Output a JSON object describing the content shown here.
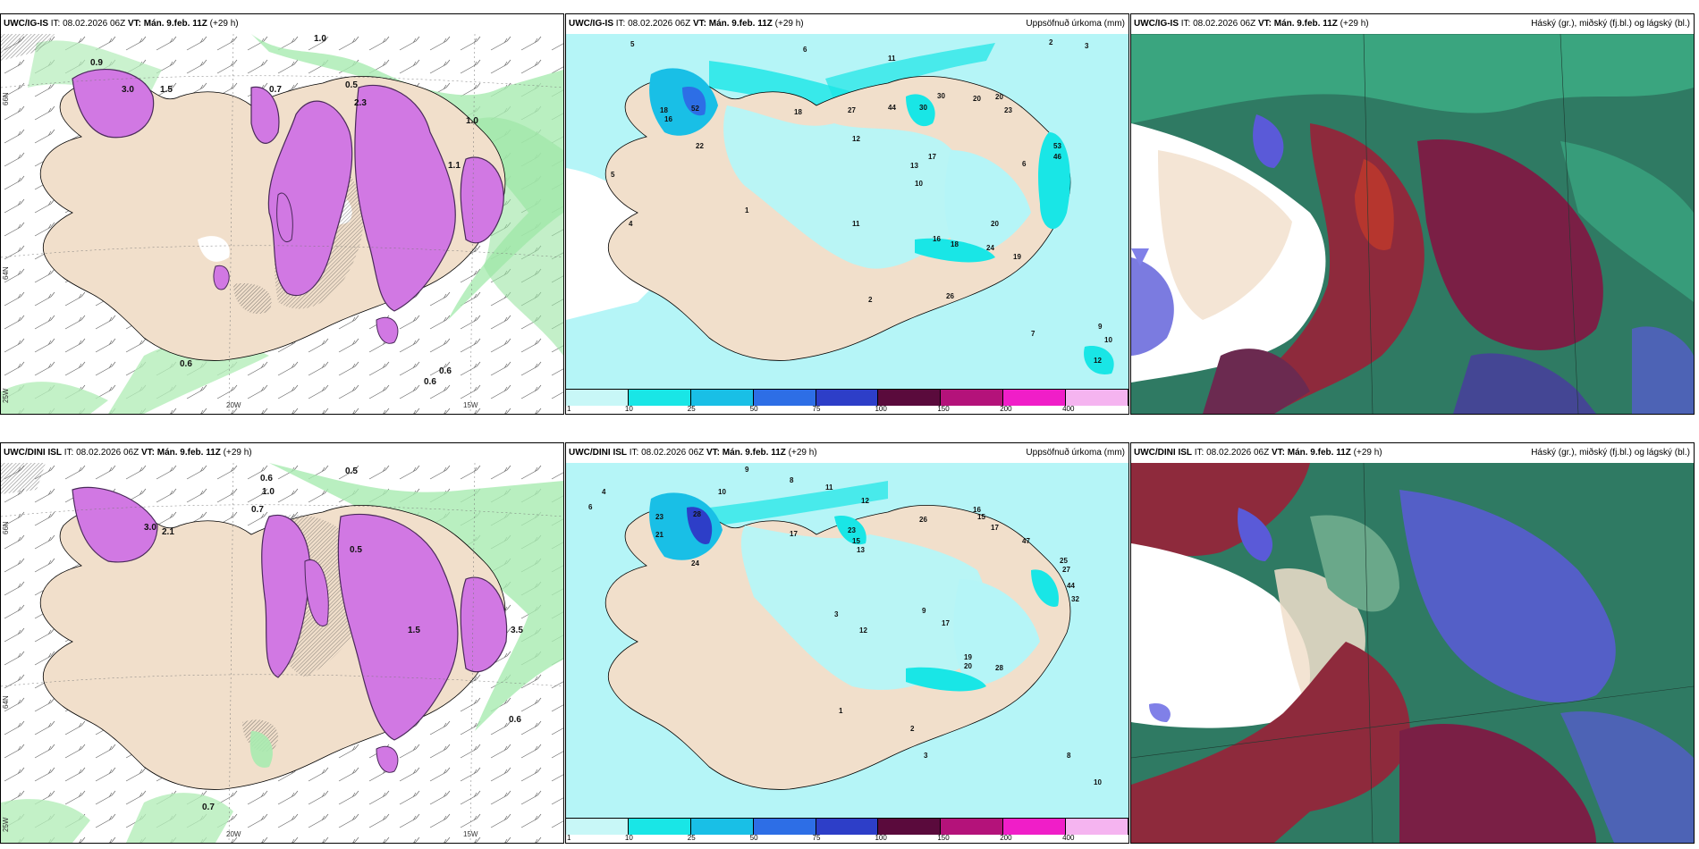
{
  "panels": [
    {
      "model": "UWC/IG-IS",
      "it_label": "IT:",
      "it": "08.02.2026 06Z",
      "vt_label": "VT:",
      "vt": "Mán. 9.feb. 11Z",
      "lead": "(+29 h)",
      "right": ""
    },
    {
      "model": "UWC/IG-IS",
      "it_label": "IT:",
      "it": "08.02.2026 06Z",
      "vt_label": "VT:",
      "vt": "Mán. 9.feb. 11Z",
      "lead": "(+29 h)",
      "right": "Uppsöfnuð úrkoma (mm)"
    },
    {
      "model": "UWC/IG-IS",
      "it_label": "IT:",
      "it": "08.02.2026 06Z",
      "vt_label": "VT:",
      "vt": "Mán. 9.feb. 11Z",
      "lead": "(+29 h)",
      "right": "Háský (gr.), miðský (fj.bl.) og lágský (bl.)"
    },
    {
      "model": "UWC/DINI ISL",
      "it_label": "IT:",
      "it": "08.02.2026 06Z",
      "vt_label": "VT:",
      "vt": "Mán. 9.feb. 11Z",
      "lead": "(+29 h)",
      "right": ""
    },
    {
      "model": "UWC/DINI ISL",
      "it_label": "IT:",
      "it": "08.02.2026 06Z",
      "vt_label": "VT:",
      "vt": "Mán. 9.feb. 11Z",
      "lead": "(+29 h)",
      "right": "Uppsöfnuð úrkoma (mm)"
    },
    {
      "model": "UWC/DINI ISL",
      "it_label": "IT:",
      "it": "08.02.2026 06Z",
      "vt_label": "VT:",
      "vt": "Mán. 9.feb. 11Z",
      "lead": "(+29 h)",
      "right": "Háský (gr.), miðský (fj.bl.) og lágský (bl.)"
    }
  ],
  "axes": {
    "lat66": "66N",
    "lat64": "64N",
    "lon20": "20W",
    "lon15": "15W",
    "lon25": "25W"
  },
  "snow_labels_top": [
    "0.9",
    "1.0",
    "1.5",
    "2.3",
    "0.6",
    "0.7",
    "0.5",
    "3.0",
    "1.1",
    "0.6",
    "0.6",
    "1.0"
  ],
  "snow_labels_bottom": [
    "1.0",
    "0.5",
    "3.0",
    "2.1",
    "1.5",
    "0.6",
    "0.7",
    "0.5",
    "3.5",
    "0.6",
    "0.7"
  ],
  "precip_labels_top": [
    "5",
    "6",
    "11",
    "2",
    "3",
    "30",
    "52",
    "18",
    "20",
    "27",
    "22",
    "44",
    "30",
    "20",
    "23",
    "46",
    "53",
    "18",
    "16",
    "12",
    "13",
    "17",
    "10",
    "4",
    "5",
    "1",
    "2",
    "11",
    "16",
    "18",
    "24",
    "26",
    "19",
    "20",
    "9",
    "10",
    "12",
    "6",
    "7"
  ],
  "precip_labels_bottom": [
    "9",
    "8",
    "10",
    "11",
    "12",
    "4",
    "6",
    "23",
    "28",
    "21",
    "24",
    "17",
    "13",
    "23",
    "15",
    "26",
    "16",
    "15",
    "17",
    "47",
    "25",
    "27",
    "44",
    "32",
    "17",
    "19",
    "20",
    "28",
    "12",
    "3",
    "9",
    "10",
    "8",
    "2",
    "3",
    "1"
  ],
  "colorbar": {
    "ticks": [
      "1",
      "10",
      "25",
      "50",
      "75",
      "100",
      "150",
      "200",
      "400"
    ],
    "colors": [
      "#c8f7f7",
      "#19e6e6",
      "#19bfe6",
      "#2d6ee6",
      "#2d3ec8",
      "#5a0a3c",
      "#b4127a",
      "#f01ec8",
      "#f5b4f0"
    ]
  },
  "colors": {
    "land": "#f1dfcb",
    "sea_cyan": "#b5f5f7",
    "precip_pink": "#d178e3",
    "green_shade": "#8fe39a"
  }
}
